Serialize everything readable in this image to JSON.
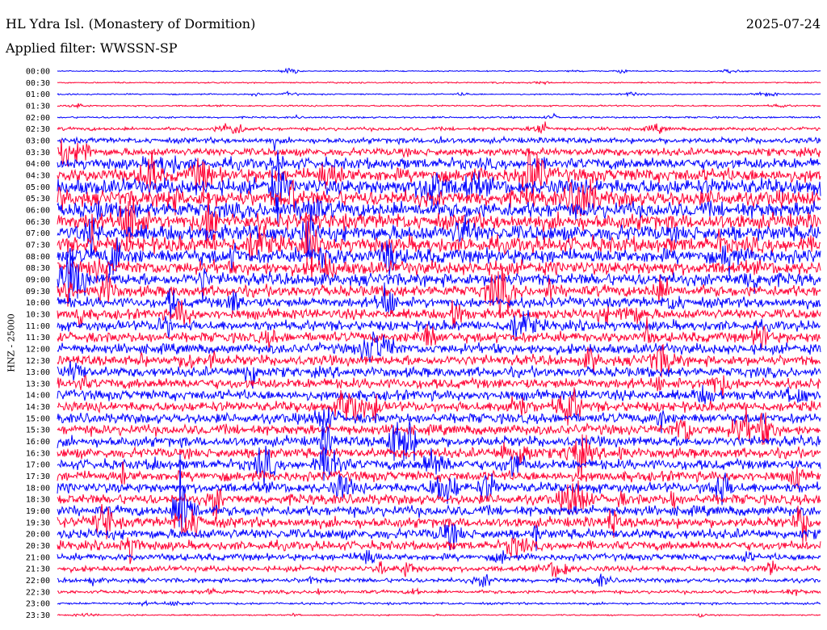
{
  "header": {
    "station": "HL Ydra Isl. (Monastery of Dormition)",
    "date": "2025-07-24",
    "filter": "Applied filter: WWSSN-SP"
  },
  "chart_data": {
    "type": "line",
    "ylabel": "HNZ - 25000",
    "x_range_minutes": [
      0,
      30
    ],
    "trace_colors": [
      "#0000ff",
      "#ff0033"
    ],
    "row_labels": [
      "00:00",
      "00:30",
      "01:00",
      "01:30",
      "02:00",
      "02:30",
      "03:00",
      "03:30",
      "04:00",
      "04:30",
      "05:00",
      "05:30",
      "06:00",
      "06:30",
      "07:00",
      "07:30",
      "08:00",
      "08:30",
      "09:00",
      "09:30",
      "10:00",
      "10:30",
      "11:00",
      "11:30",
      "12:00",
      "12:30",
      "13:00",
      "13:30",
      "14:00",
      "14:30",
      "15:00",
      "15:30",
      "16:00",
      "16:30",
      "17:00",
      "17:30",
      "18:00",
      "18:30",
      "19:00",
      "19:30",
      "20:00",
      "20:30",
      "21:00",
      "21:30",
      "22:00",
      "22:30",
      "23:00",
      "23:30"
    ],
    "noise_level": [
      0.5,
      0.6,
      0.6,
      0.7,
      0.8,
      1.5,
      2.5,
      3.5,
      5,
      6,
      7,
      7,
      7,
      7,
      7,
      7,
      6.5,
      6,
      5.5,
      5,
      4.5,
      4.5,
      4.5,
      4.5,
      4.5,
      4.5,
      4.5,
      4.5,
      4.5,
      4.5,
      4.5,
      4.5,
      4.5,
      4.5,
      4.5,
      4.5,
      4.5,
      4.5,
      4.5,
      4.5,
      4.5,
      4,
      3,
      2.5,
      2,
      1.5,
      1,
      0.6
    ]
  }
}
